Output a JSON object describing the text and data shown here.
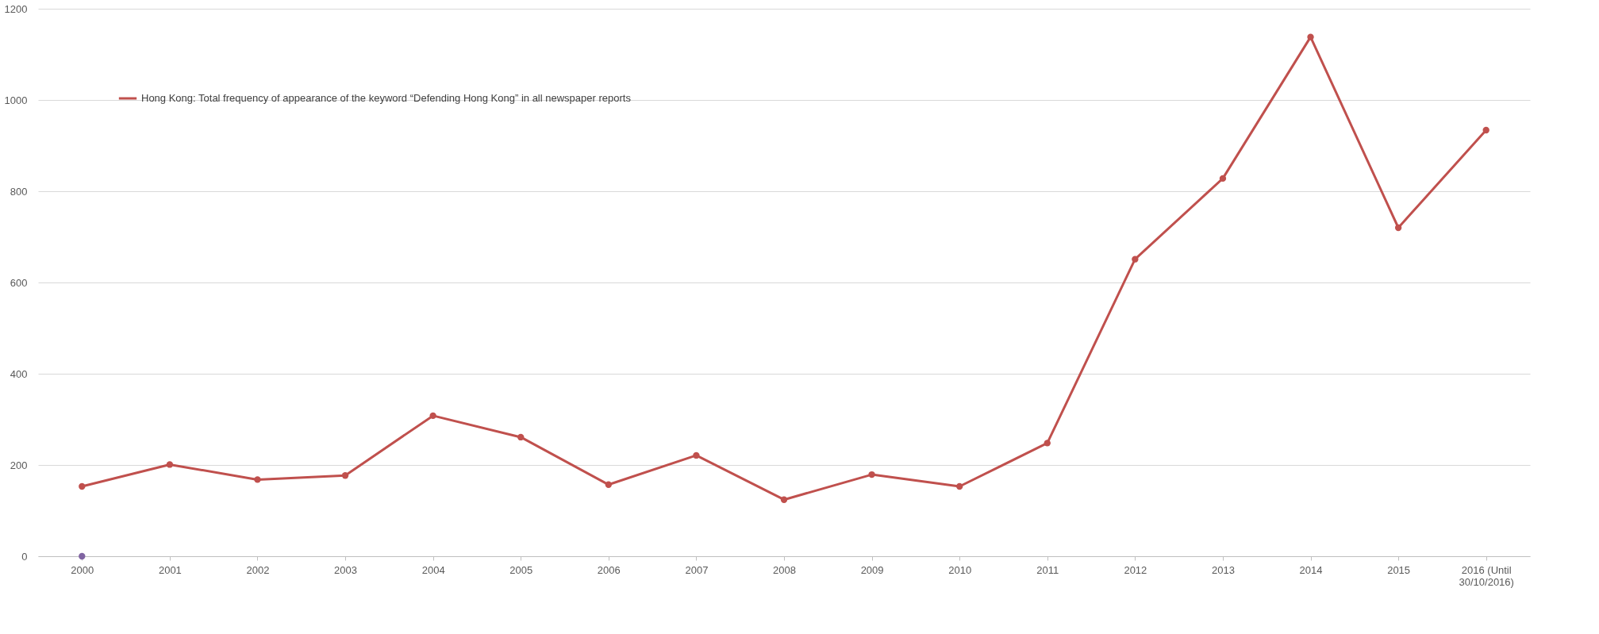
{
  "chart_data": {
    "type": "line",
    "categories": [
      "2000",
      "2001",
      "2002",
      "2003",
      "2004",
      "2005",
      "2006",
      "2007",
      "2008",
      "2009",
      "2010",
      "2011",
      "2012",
      "2013",
      "2014",
      "2015",
      "2016 (Until 30/10/2016)"
    ],
    "series": [
      {
        "name": "Hong Kong: Total frequency of appearance of the keyword “Defending Hong Kong” in all newspaper reports",
        "color": "#c0504d",
        "values": [
          153,
          201,
          168,
          177,
          308,
          261,
          157,
          221,
          124,
          179,
          153,
          248,
          651,
          828,
          1138,
          720,
          934
        ]
      },
      {
        "type": "scatter",
        "color": "#8064a2",
        "values": [
          0,
          null,
          null,
          null,
          null,
          null,
          null,
          null,
          null,
          null,
          null,
          null,
          null,
          null,
          null,
          null,
          null
        ]
      }
    ],
    "ylim": [
      0,
      1200
    ],
    "yticks": [
      0,
      200,
      400,
      600,
      800,
      1000,
      1200
    ],
    "grid": "y",
    "legend": "top left",
    "marker": "circle",
    "line_style": "solid"
  }
}
